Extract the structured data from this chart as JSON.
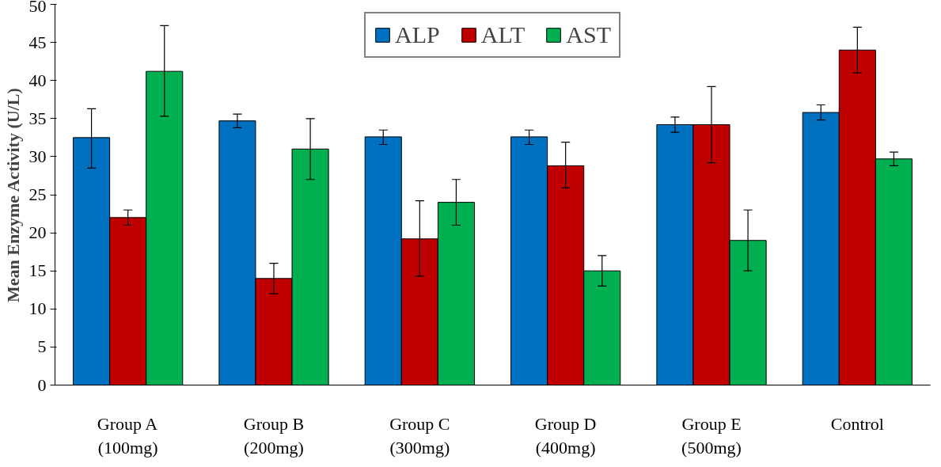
{
  "chart_data": {
    "type": "bar",
    "ylabel": "Mean Enzyme Activity (U/L)",
    "categories": [
      "Group A\n(100mg)",
      "Group B\n(200mg)",
      "Group C\n(300mg)",
      "Group D\n(400mg)",
      "Group E\n(500mg)",
      "Control"
    ],
    "series": [
      {
        "name": "ALP",
        "color": "#0070c0",
        "values": [
          32.5,
          34.7,
          32.6,
          32.6,
          34.2,
          35.8
        ],
        "errors": [
          [
            28.5,
            36.3
          ],
          [
            33.8,
            35.6
          ],
          [
            31.6,
            33.5
          ],
          [
            31.6,
            33.5
          ],
          [
            33.2,
            35.2
          ],
          [
            34.8,
            36.8
          ]
        ]
      },
      {
        "name": "ALT",
        "color": "#c00000",
        "values": [
          22,
          14,
          19.2,
          28.8,
          34.2,
          44
        ],
        "errors": [
          [
            21,
            23
          ],
          [
            12,
            16
          ],
          [
            14.3,
            24.2
          ],
          [
            25.9,
            31.9
          ],
          [
            29.2,
            39.2
          ],
          [
            41,
            47
          ]
        ]
      },
      {
        "name": "AST",
        "color": "#00b050",
        "values": [
          41.2,
          31,
          24,
          15,
          19,
          29.7
        ],
        "errors": [
          [
            35.3,
            47.2
          ],
          [
            27,
            35
          ],
          [
            21,
            27
          ],
          [
            13,
            17
          ],
          [
            15,
            23
          ],
          [
            28.8,
            30.6
          ]
        ]
      }
    ],
    "ylim": [
      0,
      50
    ],
    "yticks": [
      0,
      5,
      10,
      15,
      20,
      25,
      30,
      35,
      40,
      45,
      50
    ],
    "grid": false,
    "legend": "top"
  }
}
